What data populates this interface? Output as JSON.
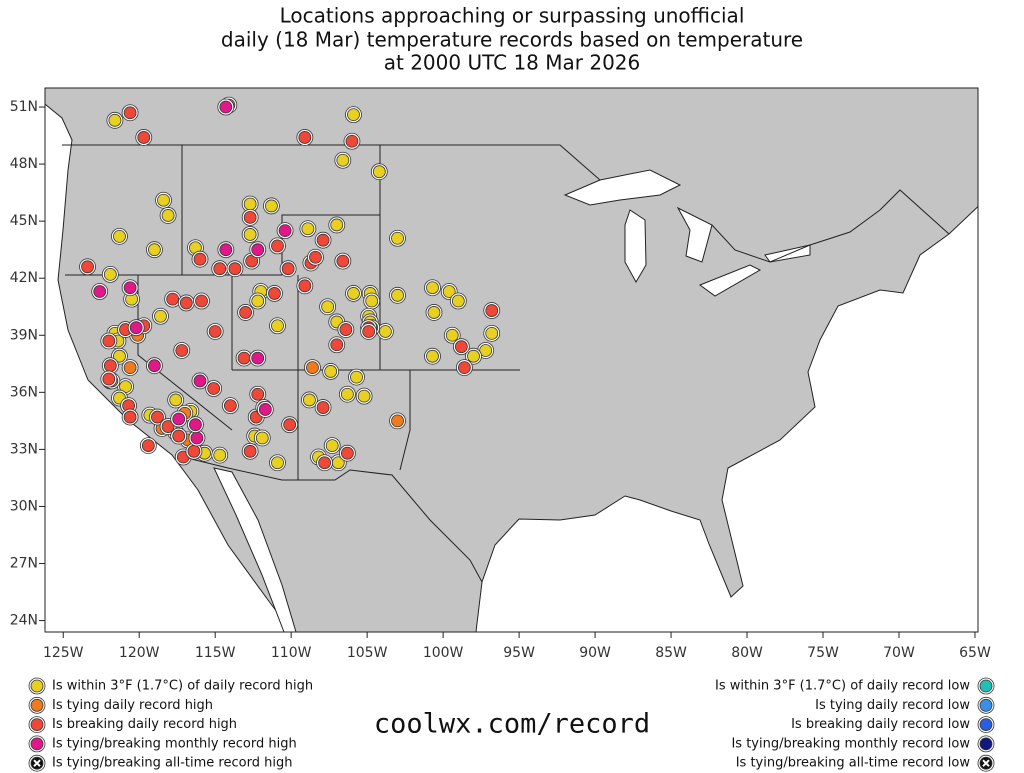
{
  "chart_data": {
    "type": "scatter",
    "title": [
      "Locations approaching or surpassing unofficial",
      "daily (18 Mar) temperature records based on temperature",
      "at 2000 UTC 18 Mar 2026"
    ],
    "xlim": [
      -126.2,
      -64.8
    ],
    "ylim": [
      23.4,
      52
    ],
    "xticks": [
      {
        "value": -125,
        "label": "125W"
      },
      {
        "value": -120,
        "label": "120W"
      },
      {
        "value": -115,
        "label": "115W"
      },
      {
        "value": -110,
        "label": "110W"
      },
      {
        "value": -105,
        "label": "105W"
      },
      {
        "value": -100,
        "label": "100W"
      },
      {
        "value": -95,
        "label": "95W"
      },
      {
        "value": -90,
        "label": "90W"
      },
      {
        "value": -85,
        "label": "85W"
      },
      {
        "value": -80,
        "label": "80W"
      },
      {
        "value": -75,
        "label": "75W"
      },
      {
        "value": -70,
        "label": "70W"
      },
      {
        "value": -65,
        "label": "65W"
      }
    ],
    "yticks": [
      {
        "value": 24,
        "label": "24N"
      },
      {
        "value": 27,
        "label": "27N"
      },
      {
        "value": 30,
        "label": "30N"
      },
      {
        "value": 33,
        "label": "33N"
      },
      {
        "value": 36,
        "label": "36N"
      },
      {
        "value": 39,
        "label": "39N"
      },
      {
        "value": 42,
        "label": "42N"
      },
      {
        "value": 45,
        "label": "45N"
      },
      {
        "value": 48,
        "label": "48N"
      },
      {
        "value": 51,
        "label": "51N"
      }
    ],
    "source": "coolwx.com/record",
    "series": [
      {
        "name": "Is within 3°F (1.7°C) of daily record high",
        "color": "#e8d020",
        "marker": "circle",
        "legend": "left",
        "lon": [
          -121.6,
          -118.4,
          -118.1,
          -121.3,
          -119.0,
          -116.3,
          -121.9,
          -120.5,
          -118.6,
          -121.6,
          -121.4,
          -121.3,
          -121.9,
          -120.9,
          -121.3,
          -119.3,
          -117.6,
          -116.6,
          -115.7,
          -114.7,
          -112.4,
          -111.9,
          -110.9,
          -112.7,
          -112.7,
          -111.3,
          -112.0,
          -112.2,
          -110.9,
          -108.9,
          -107.0,
          -106.6,
          -104.2,
          -103.0,
          -107.6,
          -107.0,
          -107.4,
          -105.7,
          -105.9,
          -104.8,
          -104.7,
          -104.9,
          -104.8,
          -103.8,
          -103.0,
          -105.2,
          -106.3,
          -107.3,
          -106.9,
          -108.2,
          -105.9,
          -100.7,
          -99.6,
          -99.0,
          -99.4,
          -97.2,
          -96.8,
          -98.0,
          -100.7,
          -108.8,
          -100.6
        ],
        "lat": [
          50.3,
          46.1,
          45.3,
          44.2,
          43.5,
          43.6,
          42.2,
          40.9,
          40.0,
          39.1,
          38.7,
          37.9,
          36.6,
          36.3,
          35.7,
          34.8,
          35.6,
          35.0,
          32.8,
          32.7,
          33.7,
          33.6,
          32.3,
          44.3,
          45.9,
          45.8,
          41.3,
          40.8,
          39.5,
          44.6,
          44.8,
          48.2,
          47.6,
          44.1,
          40.5,
          39.7,
          37.1,
          36.8,
          41.2,
          41.2,
          40.8,
          40.0,
          39.7,
          39.2,
          41.1,
          35.8,
          35.9,
          33.2,
          32.3,
          32.6,
          50.6,
          41.5,
          41.3,
          40.8,
          39.0,
          38.2,
          39.1,
          37.9,
          37.9,
          35.6,
          40.2
        ]
      },
      {
        "name": "Is tying daily record high",
        "color": "#f07a20",
        "marker": "circle",
        "legend": "left",
        "lon": [
          -121.8,
          -120.6,
          -120.1,
          -118.5,
          -117.0,
          -116.8,
          -108.6,
          -104.7,
          -103.0,
          -117.6
        ],
        "lat": [
          36.6,
          37.3,
          39.0,
          34.1,
          34.9,
          33.5,
          37.3,
          39.4,
          34.5,
          33.9
        ]
      },
      {
        "name": "Is breaking daily record high",
        "color": "#f04838",
        "marker": "circle",
        "legend": "left",
        "lon": [
          -120.6,
          -119.7,
          -114.1,
          -109.1,
          -106.0,
          -123.4,
          -122.0,
          -121.9,
          -120.9,
          -119.7,
          -117.2,
          -117.8,
          -116.9,
          -115.9,
          -115.0,
          -116.0,
          -114.7,
          -113.7,
          -112.6,
          -112.7,
          -110.9,
          -110.2,
          -111.1,
          -109.1,
          -108.7,
          -107.9,
          -108.4,
          -106.6,
          -113.0,
          -113.1,
          -112.2,
          -112.3,
          -112.7,
          -111.8,
          -110.1,
          -107.9,
          -106.3,
          -107.8,
          -107.0,
          -106.4,
          -104.9,
          -104.9,
          -98.8,
          -98.6,
          -96.8,
          -122.0,
          -120.7,
          -120.6,
          -119.4,
          -118.8,
          -118.1,
          -117.4,
          -117.1,
          -116.4,
          -114.0,
          -115.1
        ],
        "lat": [
          50.7,
          49.4,
          51.1,
          49.4,
          49.2,
          42.6,
          38.7,
          37.4,
          39.3,
          39.5,
          38.2,
          40.9,
          40.7,
          40.8,
          39.2,
          43.0,
          42.5,
          42.5,
          42.9,
          45.2,
          43.7,
          42.5,
          41.2,
          41.6,
          42.8,
          44.0,
          43.1,
          42.9,
          40.2,
          37.8,
          35.9,
          34.7,
          32.9,
          35.2,
          34.3,
          35.2,
          32.8,
          32.3,
          38.5,
          39.3,
          39.4,
          39.2,
          38.4,
          37.3,
          40.3,
          36.7,
          35.3,
          34.7,
          33.2,
          34.7,
          34.2,
          33.7,
          32.6,
          32.9,
          35.3,
          36.2
        ]
      },
      {
        "name": "Is tying/breaking monthly record high",
        "color": "#e0188a",
        "marker": "circle",
        "legend": "left",
        "lon": [
          -120.6,
          -122.6,
          -120.2,
          -119.0,
          -116.0,
          -114.3,
          -110.4,
          -114.3,
          -112.2,
          -112.2,
          -111.7,
          -117.4,
          -116.2,
          -116.3
        ],
        "lat": [
          41.5,
          41.3,
          39.4,
          37.4,
          36.6,
          51.0,
          44.5,
          43.5,
          43.5,
          37.8,
          35.1,
          34.6,
          33.6,
          34.3
        ]
      },
      {
        "name": "Is tying/breaking all-time record high",
        "color": "#111111",
        "marker": "cross",
        "legend": "left",
        "lon": [],
        "lat": []
      },
      {
        "name": "Is within 3°F (1.7°C) of daily record low",
        "color": "#20c0b8",
        "marker": "circle",
        "legend": "right",
        "lon": [],
        "lat": []
      },
      {
        "name": "Is tying daily record low",
        "color": "#3a90e8",
        "marker": "circle",
        "legend": "right",
        "lon": [],
        "lat": []
      },
      {
        "name": "Is breaking daily record low",
        "color": "#2a5ee0",
        "marker": "circle",
        "legend": "right",
        "lon": [],
        "lat": []
      },
      {
        "name": "Is tying/breaking monthly record low",
        "color": "#101880",
        "marker": "circle",
        "legend": "right",
        "lon": [],
        "lat": []
      },
      {
        "name": "Is tying/breaking all-time record low",
        "color": "#111111",
        "marker": "cross",
        "legend": "right",
        "lon": [],
        "lat": []
      }
    ]
  }
}
